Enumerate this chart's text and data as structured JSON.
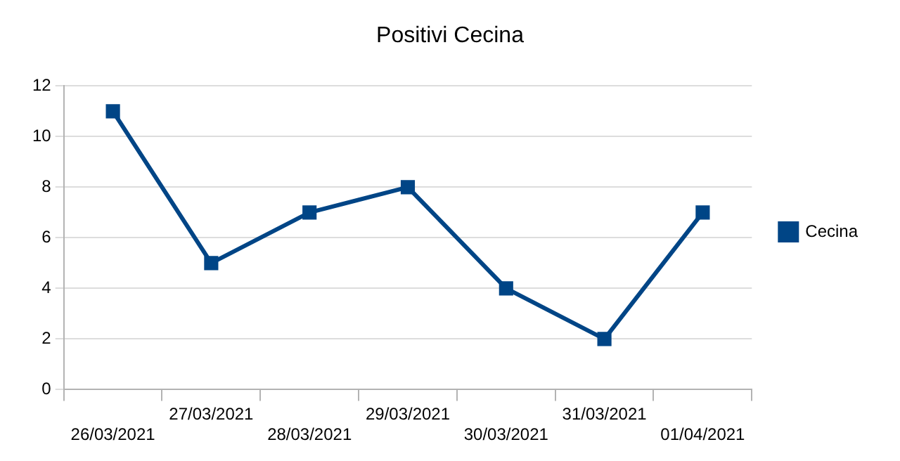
{
  "chart_data": {
    "type": "line",
    "title": "Positivi Cecina",
    "categories": [
      "26/03/2021",
      "27/03/2021",
      "28/03/2021",
      "29/03/2021",
      "30/03/2021",
      "31/03/2021",
      "01/04/2021"
    ],
    "series": [
      {
        "name": "Cecina",
        "color": "#004586",
        "values": [
          11,
          5,
          7,
          8,
          4,
          2,
          7
        ]
      }
    ],
    "ylim": [
      0,
      12
    ],
    "yticks": [
      0,
      2,
      4,
      6,
      8,
      10,
      12
    ],
    "grid": "y",
    "legend": "right",
    "marker": "square",
    "line_style": "solid"
  }
}
